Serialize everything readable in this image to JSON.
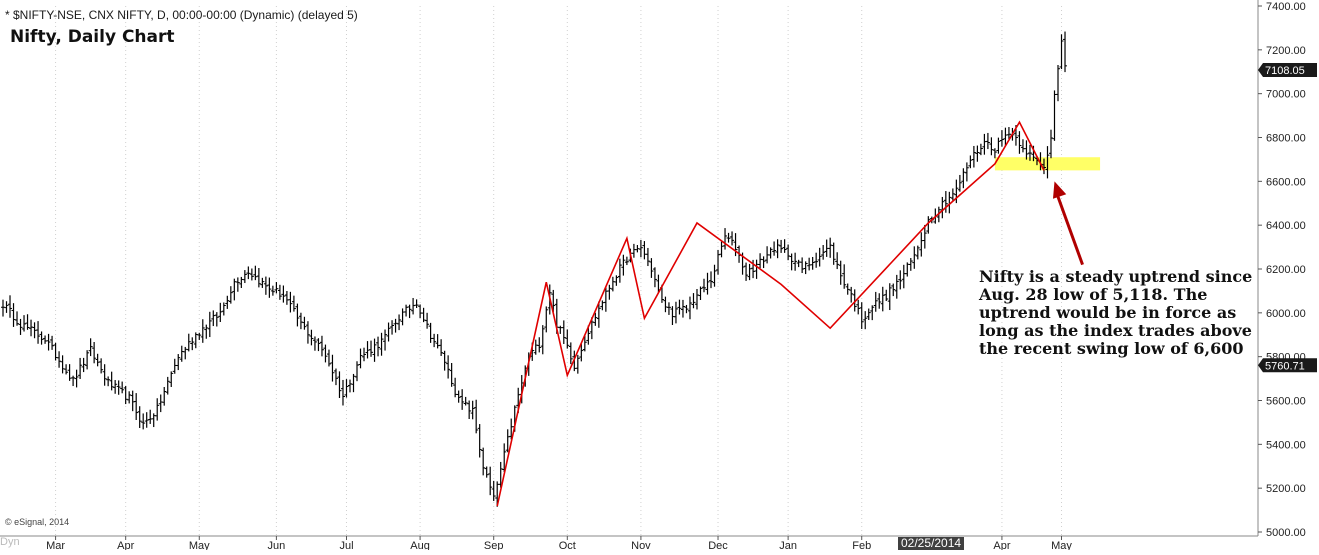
{
  "header": {
    "symbol_line": "* $NIFTY-NSE, CNX NIFTY, D, 00:00-00:00 (Dynamic) (delayed 5)",
    "title": "Nifty, Daily Chart"
  },
  "footer": {
    "copyright": "© eSignal, 2014",
    "date_marker": "02/25/2014",
    "dyn_label": "Dyn"
  },
  "annotation": {
    "text": "Nifty is a steady uptrend since Aug. 28 low of 5,118. The uptrend would be in force as long as the index trades above the recent swing low of 6,600"
  },
  "colors": {
    "bars": "#000000",
    "trend_lines": "#e00000",
    "support_zone": "#ffff66",
    "arrow": "#b00000",
    "axis_tag_bg": "#1a1a1a",
    "axis_tag_text": "#ffffff"
  },
  "chart_data": {
    "type": "ohlc",
    "title": "Nifty, Daily Chart",
    "ylim": [
      5000,
      7400
    ],
    "y_ticks": [
      "7400.00",
      "7200.00",
      "7000.00",
      "6800.00",
      "6600.00",
      "6400.00",
      "6200.00",
      "6000.00",
      "5800.00",
      "5600.00",
      "5400.00",
      "5200.00",
      "5000.00"
    ],
    "y_tick_values": [
      7400,
      7200,
      7000,
      6800,
      6600,
      6400,
      6200,
      6000,
      5800,
      5600,
      5400,
      5200,
      5000
    ],
    "x_ticks": [
      "Mar",
      "Apr",
      "May",
      "Jun",
      "Jul",
      "Aug",
      "Sep",
      "Oct",
      "Nov",
      "Dec",
      "Jan",
      "Feb",
      "Apr",
      "May"
    ],
    "x_tick_index": [
      15,
      35,
      56,
      78,
      98,
      119,
      140,
      161,
      182,
      204,
      224,
      245,
      285,
      302
    ],
    "last_price_tag": "7108.05",
    "last_price": 7108.05,
    "secondary_tag": "5760.71",
    "secondary_value": 5760.71,
    "close_anchors": [
      [
        0,
        6040
      ],
      [
        5,
        5950
      ],
      [
        12,
        5880
      ],
      [
        20,
        5690
      ],
      [
        25,
        5830
      ],
      [
        30,
        5680
      ],
      [
        36,
        5610
      ],
      [
        40,
        5490
      ],
      [
        44,
        5560
      ],
      [
        50,
        5800
      ],
      [
        55,
        5900
      ],
      [
        62,
        6000
      ],
      [
        66,
        6140
      ],
      [
        70,
        6190
      ],
      [
        75,
        6120
      ],
      [
        80,
        6080
      ],
      [
        85,
        5950
      ],
      [
        92,
        5810
      ],
      [
        97,
        5620
      ],
      [
        102,
        5800
      ],
      [
        108,
        5870
      ],
      [
        113,
        5980
      ],
      [
        118,
        6050
      ],
      [
        122,
        5900
      ],
      [
        126,
        5780
      ],
      [
        130,
        5600
      ],
      [
        134,
        5550
      ],
      [
        137,
        5300
      ],
      [
        140,
        5150
      ],
      [
        143,
        5350
      ],
      [
        146,
        5560
      ],
      [
        150,
        5800
      ],
      [
        153,
        5860
      ],
      [
        156,
        6100
      ],
      [
        158,
        5950
      ],
      [
        161,
        5850
      ],
      [
        163,
        5760
      ],
      [
        166,
        5880
      ],
      [
        170,
        6020
      ],
      [
        174,
        6150
      ],
      [
        178,
        6250
      ],
      [
        182,
        6300
      ],
      [
        185,
        6200
      ],
      [
        188,
        6050
      ],
      [
        191,
        6000
      ],
      [
        195,
        6020
      ],
      [
        198,
        6080
      ],
      [
        202,
        6150
      ],
      [
        206,
        6350
      ],
      [
        209,
        6300
      ],
      [
        212,
        6180
      ],
      [
        216,
        6230
      ],
      [
        220,
        6300
      ],
      [
        224,
        6270
      ],
      [
        228,
        6200
      ],
      [
        232,
        6250
      ],
      [
        236,
        6300
      ],
      [
        239,
        6170
      ],
      [
        242,
        6080
      ],
      [
        245,
        5970
      ],
      [
        248,
        6030
      ],
      [
        252,
        6080
      ],
      [
        256,
        6150
      ],
      [
        260,
        6260
      ],
      [
        264,
        6420
      ],
      [
        268,
        6500
      ],
      [
        272,
        6560
      ],
      [
        276,
        6700
      ],
      [
        280,
        6780
      ],
      [
        283,
        6750
      ],
      [
        287,
        6830
      ],
      [
        290,
        6780
      ],
      [
        294,
        6700
      ],
      [
        297,
        6660
      ],
      [
        299,
        6800
      ],
      [
        300,
        7010
      ],
      [
        302,
        7250
      ],
      [
        303,
        7120
      ]
    ],
    "trend_lines": [
      [
        [
          141,
          5118
        ],
        [
          155,
          6140
        ],
        [
          161,
          5715
        ],
        [
          178,
          6340
        ],
        [
          183,
          5975
        ],
        [
          198,
          6410
        ],
        [
          222,
          6130
        ],
        [
          236,
          5930
        ],
        [
          264,
          6410
        ],
        [
          283,
          6680
        ],
        [
          290,
          6870
        ],
        [
          297,
          6650
        ]
      ]
    ],
    "support_zone": {
      "x_start_index": 283,
      "x_end_index": 313,
      "y_low": 6650,
      "y_high": 6710
    },
    "arrow": {
      "from": {
        "i": 308,
        "price": 6220
      },
      "to": {
        "i": 300,
        "price": 6600
      }
    }
  }
}
